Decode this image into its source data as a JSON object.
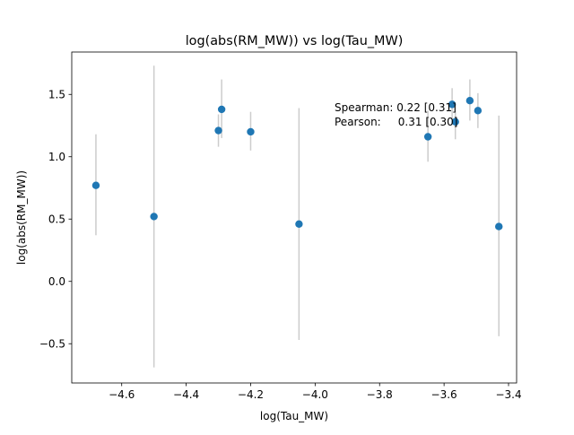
{
  "chart_data": {
    "type": "scatter",
    "title": "log(abs(RM_MW)) vs log(Tau_MW)",
    "xlabel": "log(Tau_MW)",
    "ylabel": "log(abs(RM_MW))",
    "xlim": [
      -4.755,
      -3.375
    ],
    "ylim": [
      -0.815,
      1.84
    ],
    "xticks": [
      -4.6,
      -4.4,
      -4.2,
      -4.0,
      -3.8,
      -3.6,
      -3.4
    ],
    "xtick_labels": [
      "−4.6",
      "−4.4",
      "−4.2",
      "−4.0",
      "−3.8",
      "−3.6",
      "−3.4"
    ],
    "yticks": [
      -0.5,
      0.0,
      0.5,
      1.0,
      1.5
    ],
    "ytick_labels": [
      "−0.5",
      "0.0",
      "0.5",
      "1.0",
      "1.5"
    ],
    "grid": false,
    "marker_color": "#1f77b4",
    "errorbar_color": "#cccccc",
    "points": [
      {
        "x": -4.68,
        "y": 0.77,
        "err_low": 0.37,
        "err_high": 1.18
      },
      {
        "x": -4.5,
        "y": 0.52,
        "err_low": -0.69,
        "err_high": 1.73
      },
      {
        "x": -4.3,
        "y": 1.21,
        "err_low": 1.08,
        "err_high": 1.34
      },
      {
        "x": -4.29,
        "y": 1.38,
        "err_low": 1.15,
        "err_high": 1.62
      },
      {
        "x": -4.2,
        "y": 1.2,
        "err_low": 1.05,
        "err_high": 1.36
      },
      {
        "x": -4.05,
        "y": 0.46,
        "err_low": -0.47,
        "err_high": 1.39
      },
      {
        "x": -3.65,
        "y": 1.16,
        "err_low": 0.96,
        "err_high": 1.37
      },
      {
        "x": -3.575,
        "y": 1.42,
        "err_low": 1.3,
        "err_high": 1.55
      },
      {
        "x": -3.565,
        "y": 1.28,
        "err_low": 1.14,
        "err_high": 1.42
      },
      {
        "x": -3.52,
        "y": 1.45,
        "err_low": 1.29,
        "err_high": 1.62
      },
      {
        "x": -3.495,
        "y": 1.37,
        "err_low": 1.23,
        "err_high": 1.51
      },
      {
        "x": -3.43,
        "y": 0.44,
        "err_low": -0.44,
        "err_high": 1.33
      }
    ],
    "annotations": [
      "Spearman: 0.22 [0.31]",
      "Pearson:     0.31 [0.30]"
    ]
  }
}
